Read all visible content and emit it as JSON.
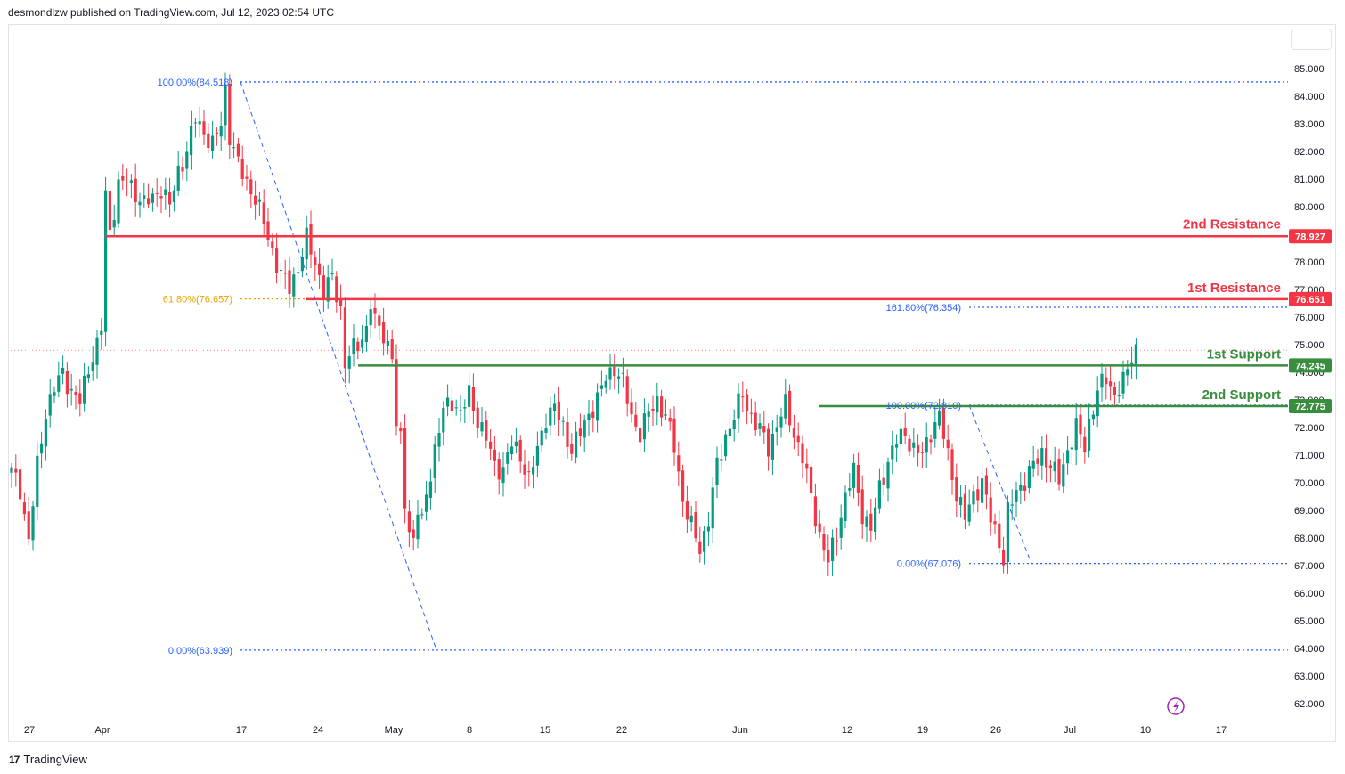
{
  "header": {
    "text": "desmondlzw published on TradingView.com, Jul 12, 2023 02:54 UTC"
  },
  "footer": {
    "brand": "TradingView",
    "logo_glyph": "17"
  },
  "chart_data": {
    "type": "candlestick",
    "y_axis": {
      "ticks": [
        "85.000",
        "84.000",
        "83.000",
        "82.000",
        "81.000",
        "80.000",
        "79.000",
        "78.000",
        "77.000",
        "76.000",
        "75.000",
        "74.000",
        "73.000",
        "72.000",
        "71.000",
        "70.000",
        "69.000",
        "68.000",
        "67.000",
        "66.000",
        "65.000",
        "64.000",
        "63.000",
        "62.000"
      ],
      "range": [
        61.6,
        85.6
      ]
    },
    "x_axis": {
      "ticks": [
        "27",
        "Apr",
        "17",
        "24",
        "May",
        "8",
        "15",
        "22",
        "Jun",
        "12",
        "19",
        "26",
        "Jul",
        "10",
        "17"
      ]
    },
    "levels": [
      {
        "name": "2nd Resistance",
        "value": 78.927,
        "label": "78.927",
        "color": "#f23645"
      },
      {
        "name": "1st Resistance",
        "value": 76.651,
        "label": "76.651",
        "color": "#f23645"
      },
      {
        "name": "1st Support",
        "value": 74.245,
        "label": "74.245",
        "color": "#388e3c"
      },
      {
        "name": "2nd Support",
        "value": 72.775,
        "label": "72.775",
        "color": "#388e3c"
      }
    ],
    "fib_labels": [
      {
        "text": "100.00%(84.518)",
        "value": 84.518,
        "color": "#2962ff"
      },
      {
        "text": "61.80%(76.657)",
        "value": 76.657,
        "color": "#e8a200"
      },
      {
        "text": "0.00%(63.939)",
        "value": 63.939,
        "color": "#2962ff"
      },
      {
        "text": "161.80%(76.354)",
        "value": 76.354,
        "color": "#2962ff"
      },
      {
        "text": "100.00%(72.810)",
        "value": 72.81,
        "color": "#2962ff"
      },
      {
        "text": "0.00%(67.076)",
        "value": 67.076,
        "color": "#2962ff"
      }
    ],
    "last_price": 74.8,
    "colors": {
      "up": "#089981",
      "down": "#f23645",
      "fib_blue": "#2962ff",
      "fib_orange": "#e8a200"
    },
    "path": [
      [
        0,
        70.4
      ],
      [
        2,
        69.8
      ],
      [
        4,
        67.9
      ],
      [
        6,
        70.6
      ],
      [
        8,
        72.6
      ],
      [
        10,
        73.4
      ],
      [
        12,
        74.0
      ],
      [
        14,
        73.3
      ],
      [
        16,
        72.9
      ],
      [
        18,
        74.2
      ],
      [
        20,
        75.0
      ],
      [
        21,
        75.6
      ],
      [
        22,
        80.4
      ],
      [
        23,
        79.1
      ],
      [
        25,
        80.8
      ],
      [
        27,
        80.9
      ],
      [
        29,
        80.5
      ],
      [
        31,
        80.1
      ],
      [
        33,
        80.3
      ],
      [
        35,
        80.7
      ],
      [
        37,
        80.0
      ],
      [
        39,
        81.3
      ],
      [
        41,
        82.0
      ],
      [
        43,
        83.2
      ],
      [
        45,
        82.7
      ],
      [
        47,
        82.2
      ],
      [
        49,
        83.0
      ],
      [
        50,
        84.3
      ],
      [
        51,
        82.6
      ],
      [
        53,
        81.5
      ],
      [
        55,
        80.9
      ],
      [
        57,
        80.3
      ],
      [
        59,
        79.4
      ],
      [
        61,
        78.4
      ],
      [
        63,
        77.5
      ],
      [
        65,
        77.1
      ],
      [
        67,
        77.8
      ],
      [
        69,
        78.8
      ],
      [
        71,
        78.0
      ],
      [
        73,
        76.9
      ],
      [
        75,
        77.4
      ],
      [
        77,
        76.3
      ],
      [
        78,
        74.3
      ],
      [
        79,
        74.6
      ],
      [
        81,
        75.0
      ],
      [
        83,
        75.6
      ],
      [
        84,
        76.5
      ],
      [
        85,
        75.8
      ],
      [
        87,
        75.4
      ],
      [
        89,
        74.6
      ],
      [
        90,
        72.0
      ],
      [
        91,
        71.5
      ],
      [
        92,
        69.4
      ],
      [
        93,
        68.3
      ],
      [
        94,
        67.9
      ],
      [
        95,
        69.0
      ],
      [
        96,
        68.5
      ],
      [
        97,
        69.6
      ],
      [
        99,
        71.2
      ],
      [
        101,
        72.6
      ],
      [
        103,
        73.0
      ],
      [
        105,
        72.5
      ],
      [
        107,
        73.2
      ],
      [
        109,
        72.3
      ],
      [
        111,
        71.6
      ],
      [
        113,
        70.6
      ],
      [
        115,
        70.5
      ],
      [
        117,
        71.4
      ],
      [
        119,
        71.0
      ],
      [
        121,
        70.1
      ],
      [
        123,
        71.2
      ],
      [
        125,
        72.4
      ],
      [
        127,
        72.7
      ],
      [
        129,
        72.0
      ],
      [
        131,
        71.2
      ],
      [
        133,
        71.8
      ],
      [
        135,
        72.5
      ],
      [
        137,
        73.0
      ],
      [
        139,
        73.8
      ],
      [
        141,
        74.2
      ],
      [
        143,
        73.6
      ],
      [
        145,
        72.4
      ],
      [
        147,
        71.8
      ],
      [
        149,
        72.5
      ],
      [
        151,
        73.0
      ],
      [
        153,
        72.4
      ],
      [
        155,
        71.3
      ],
      [
        157,
        69.4
      ],
      [
        159,
        68.4
      ],
      [
        161,
        67.6
      ],
      [
        163,
        68.7
      ],
      [
        165,
        70.6
      ],
      [
        167,
        71.7
      ],
      [
        169,
        72.4
      ],
      [
        171,
        73.2
      ],
      [
        173,
        72.4
      ],
      [
        175,
        71.9
      ],
      [
        177,
        71.3
      ],
      [
        179,
        72.1
      ],
      [
        181,
        72.8
      ],
      [
        183,
        71.8
      ],
      [
        185,
        70.9
      ],
      [
        187,
        69.5
      ],
      [
        189,
        68.1
      ],
      [
        191,
        67.1
      ],
      [
        193,
        68.2
      ],
      [
        195,
        69.5
      ],
      [
        197,
        70.4
      ],
      [
        199,
        68.9
      ],
      [
        201,
        68.3
      ],
      [
        203,
        69.8
      ],
      [
        205,
        70.8
      ],
      [
        207,
        71.5
      ],
      [
        209,
        71.8
      ],
      [
        211,
        71.2
      ],
      [
        213,
        71.0
      ],
      [
        215,
        71.9
      ],
      [
        217,
        72.4
      ],
      [
        219,
        71.0
      ],
      [
        221,
        69.6
      ],
      [
        223,
        68.7
      ],
      [
        225,
        69.6
      ],
      [
        227,
        70.0
      ],
      [
        229,
        68.7
      ],
      [
        231,
        67.9
      ],
      [
        232,
        67.2
      ],
      [
        233,
        68.9
      ],
      [
        235,
        69.7
      ],
      [
        237,
        70.1
      ],
      [
        239,
        70.6
      ],
      [
        241,
        71.1
      ],
      [
        243,
        70.6
      ],
      [
        245,
        70.1
      ],
      [
        247,
        71.2
      ],
      [
        249,
        72.0
      ],
      [
        251,
        71.3
      ],
      [
        252,
        72.2
      ],
      [
        254,
        73.3
      ],
      [
        256,
        73.8
      ],
      [
        258,
        73.2
      ],
      [
        260,
        73.6
      ],
      [
        262,
        74.6
      ],
      [
        263,
        74.9
      ]
    ]
  }
}
